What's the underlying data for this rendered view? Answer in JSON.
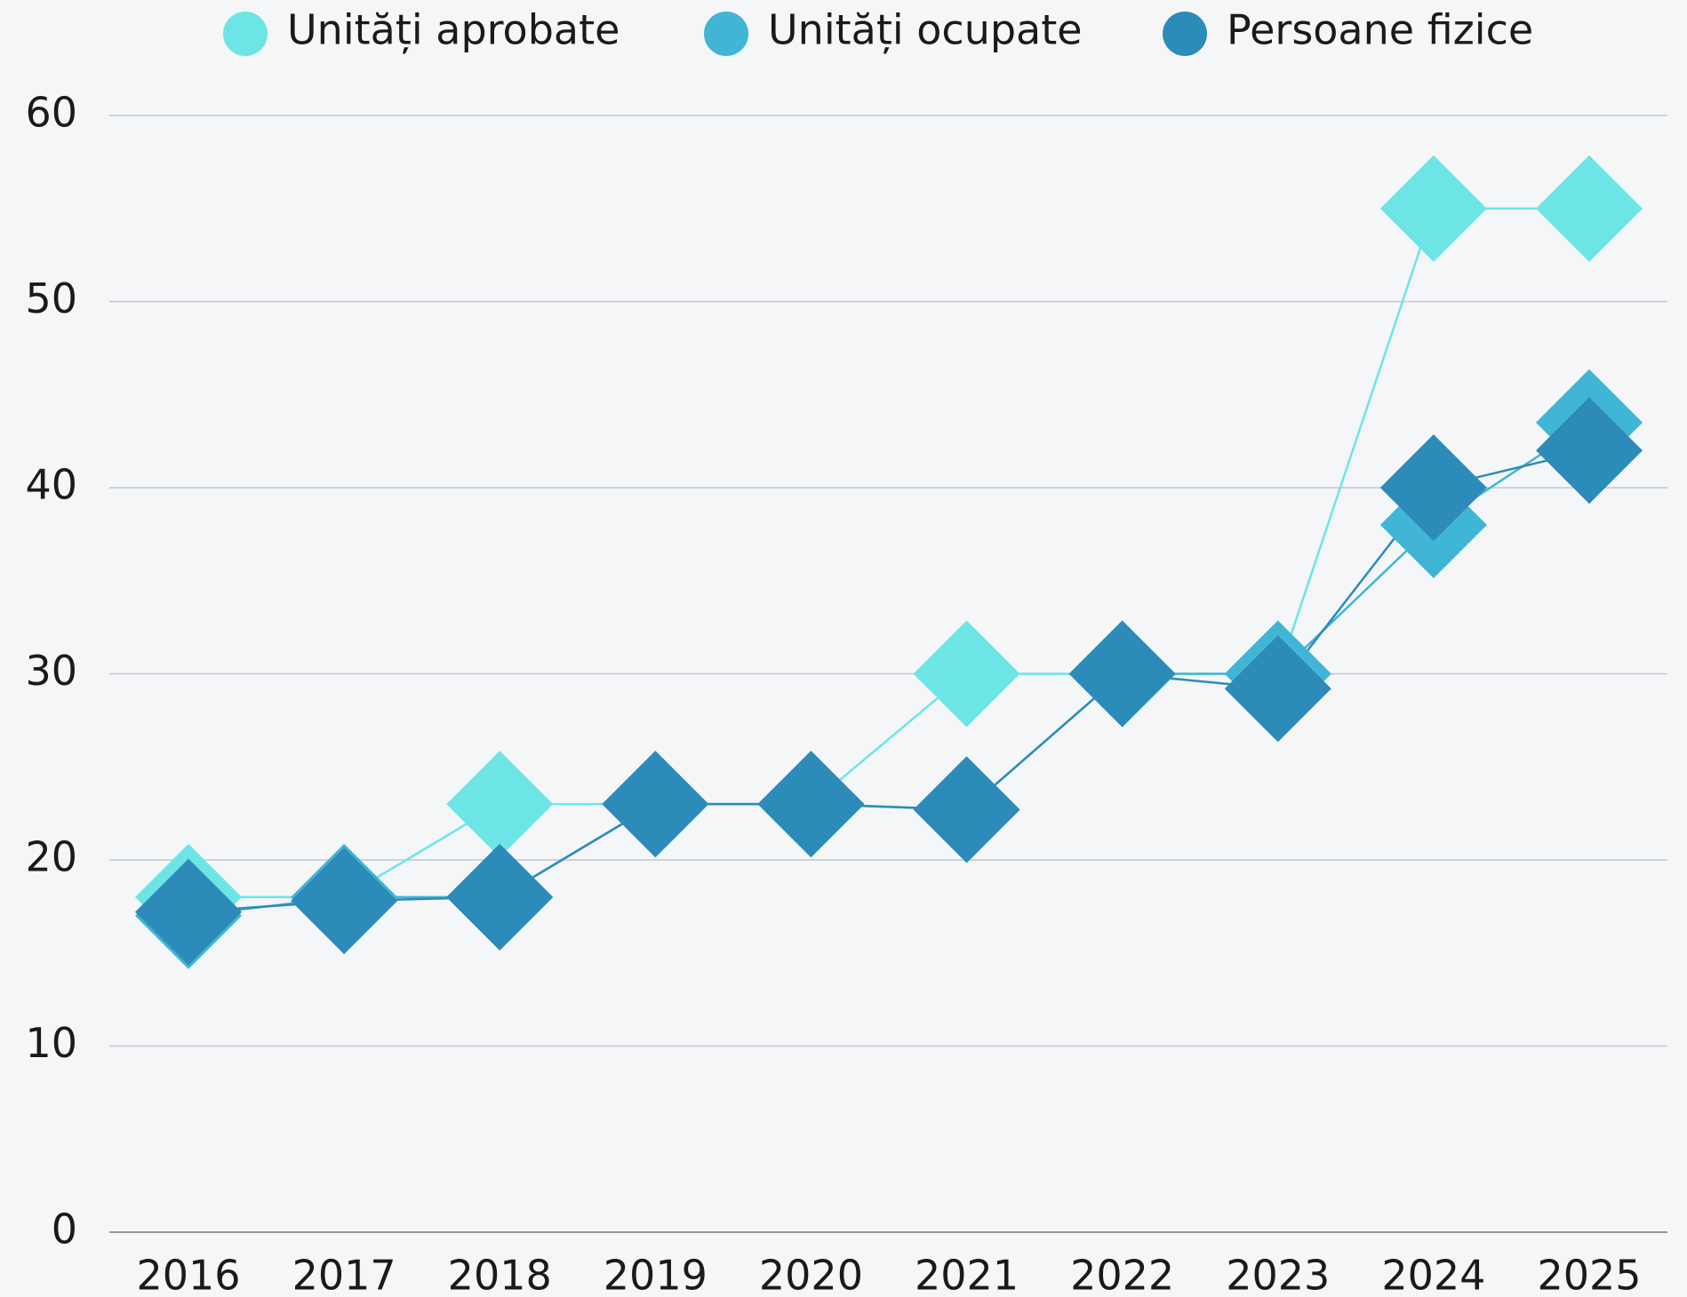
{
  "chart_data": {
    "type": "line",
    "categories": [
      "2016",
      "2017",
      "2018",
      "2019",
      "2020",
      "2021",
      "2022",
      "2023",
      "2024",
      "2025"
    ],
    "series": [
      {
        "name": "Unități aprobate",
        "color": "#6de5e6",
        "values": [
          18,
          18,
          23,
          23,
          23,
          30,
          30,
          30,
          55,
          55
        ]
      },
      {
        "name": "Unități ocupate",
        "color": "#40b5d5",
        "values": [
          17,
          18,
          18,
          23,
          23,
          22.7,
          30,
          30,
          38,
          43.5
        ]
      },
      {
        "name": "Persoane fizice",
        "color": "#2d8bba",
        "values": [
          17.2,
          17.8,
          18,
          23,
          23,
          22.7,
          30,
          29.2,
          40,
          42
        ]
      }
    ],
    "ylim": [
      0,
      60
    ],
    "yticks": [
      0,
      10,
      20,
      30,
      40,
      50,
      60
    ],
    "grid": true,
    "legend": "top",
    "marker": "diamond"
  }
}
